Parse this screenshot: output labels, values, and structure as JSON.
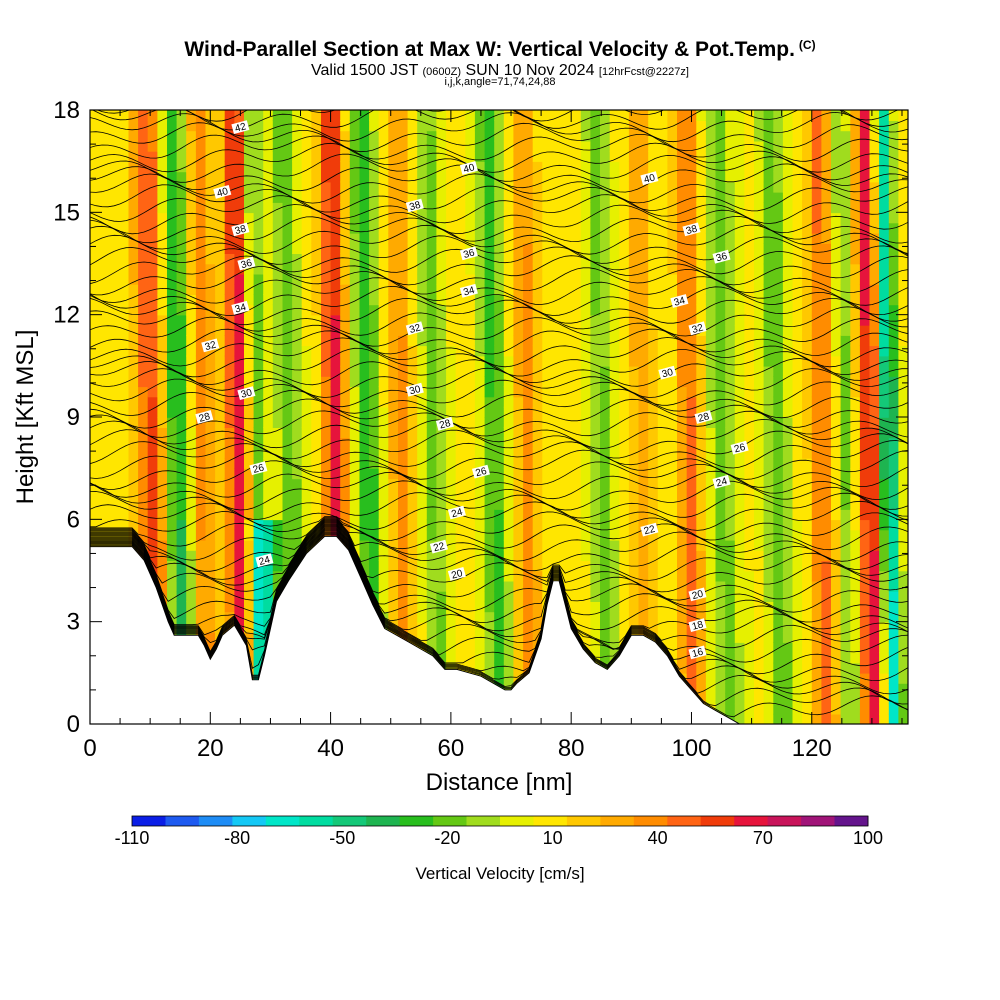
{
  "header": {
    "title": "Wind-Parallel Section at Max W: Vertical Velocity & Pot.Temp.",
    "copyright": "(C)",
    "valid_a": "Valid 1500 JST",
    "valid_b": "(0600Z)",
    "valid_c": "SUN 10 Nov 2024",
    "valid_d": "[12hrFcst@2227z]",
    "indices": "i,j,k,angle=71,74,24,88"
  },
  "chart_data": {
    "type": "heatmap",
    "xlabel": "Distance [nm]",
    "ylabel": "Height [Kft MSL]",
    "xlim": [
      0,
      136
    ],
    "ylim": [
      0,
      18
    ],
    "x_ticks": [
      0,
      20,
      40,
      60,
      80,
      100,
      120
    ],
    "y_ticks": [
      0,
      3,
      6,
      9,
      12,
      15,
      18
    ],
    "field": "Vertical Velocity [cm/s]",
    "contour_field": "Potential temperature",
    "colorbar": {
      "label": "Vertical Velocity [cm/s]",
      "tick_labels": [
        -110,
        -80,
        -50,
        -20,
        10,
        40,
        70,
        100
      ],
      "bins": [
        -110,
        -100,
        -90,
        -80,
        -70,
        -60,
        -50,
        -40,
        -30,
        -20,
        -10,
        0,
        10,
        20,
        30,
        40,
        50,
        60,
        70,
        80,
        90,
        100
      ],
      "colors": [
        "#0a1ee6",
        "#1e5af0",
        "#1e8cf5",
        "#14c8f5",
        "#00e6c8",
        "#00dca0",
        "#14c878",
        "#1eb450",
        "#28be1e",
        "#64c814",
        "#a0dc1e",
        "#e6f000",
        "#ffe600",
        "#ffc800",
        "#ffaa00",
        "#ff8c00",
        "#ff6414",
        "#f03c0a",
        "#e6143c",
        "#c8145a",
        "#a01478",
        "#64148c"
      ]
    },
    "terrain": [
      [
        0,
        5.2
      ],
      [
        3,
        5.2
      ],
      [
        7,
        5.2
      ],
      [
        9,
        4.8
      ],
      [
        11,
        4.0
      ],
      [
        12,
        3.5
      ],
      [
        13,
        3.0
      ],
      [
        14,
        2.6
      ],
      [
        16,
        2.6
      ],
      [
        18,
        2.6
      ],
      [
        19,
        2.3
      ],
      [
        20,
        1.9
      ],
      [
        21,
        2.2
      ],
      [
        22,
        2.6
      ],
      [
        24,
        2.9
      ],
      [
        25,
        2.6
      ],
      [
        26,
        2.3
      ],
      [
        27,
        1.3
      ],
      [
        28,
        1.3
      ],
      [
        29,
        2.0
      ],
      [
        31,
        3.6
      ],
      [
        33,
        4.2
      ],
      [
        36,
        5.0
      ],
      [
        39,
        5.5
      ],
      [
        41,
        5.5
      ],
      [
        43,
        5.1
      ],
      [
        45,
        4.3
      ],
      [
        47,
        3.5
      ],
      [
        49,
        2.8
      ],
      [
        51,
        2.6
      ],
      [
        53,
        2.4
      ],
      [
        55,
        2.2
      ],
      [
        57,
        2.0
      ],
      [
        59,
        1.6
      ],
      [
        61,
        1.6
      ],
      [
        63,
        1.5
      ],
      [
        65,
        1.4
      ],
      [
        67,
        1.2
      ],
      [
        69,
        1.0
      ],
      [
        70,
        1.0
      ],
      [
        71,
        1.2
      ],
      [
        73,
        1.5
      ],
      [
        75,
        2.5
      ],
      [
        76,
        3.5
      ],
      [
        77,
        4.2
      ],
      [
        78,
        4.2
      ],
      [
        79,
        3.5
      ],
      [
        80,
        2.8
      ],
      [
        82,
        2.2
      ],
      [
        84,
        1.8
      ],
      [
        86,
        1.6
      ],
      [
        88,
        2.0
      ],
      [
        90,
        2.6
      ],
      [
        92,
        2.6
      ],
      [
        94,
        2.4
      ],
      [
        96,
        2.0
      ],
      [
        98,
        1.4
      ],
      [
        100,
        1.0
      ],
      [
        102,
        0.6
      ],
      [
        104,
        0.4
      ],
      [
        106,
        0.2
      ],
      [
        108,
        0.0
      ],
      [
        110,
        0.0
      ],
      [
        112,
        0.0
      ],
      [
        136,
        0.0
      ]
    ],
    "contour_labels": [
      {
        "x": 25.0,
        "y": 17.5,
        "text": "42"
      },
      {
        "x": 22.0,
        "y": 15.6,
        "text": "40"
      },
      {
        "x": 25.0,
        "y": 14.5,
        "text": "38"
      },
      {
        "x": 26.0,
        "y": 13.5,
        "text": "36"
      },
      {
        "x": 25.0,
        "y": 12.2,
        "text": "34"
      },
      {
        "x": 20.0,
        "y": 11.1,
        "text": "32"
      },
      {
        "x": 26.0,
        "y": 9.7,
        "text": "30"
      },
      {
        "x": 19.0,
        "y": 9.0,
        "text": "28"
      },
      {
        "x": 28.0,
        "y": 7.5,
        "text": "26"
      },
      {
        "x": 29.0,
        "y": 4.8,
        "text": "24"
      },
      {
        "x": 54.0,
        "y": 15.2,
        "text": "38"
      },
      {
        "x": 63.0,
        "y": 16.3,
        "text": "40"
      },
      {
        "x": 63.0,
        "y": 13.8,
        "text": "36"
      },
      {
        "x": 63.0,
        "y": 12.7,
        "text": "34"
      },
      {
        "x": 54.0,
        "y": 11.6,
        "text": "32"
      },
      {
        "x": 54.0,
        "y": 9.8,
        "text": "30"
      },
      {
        "x": 59.0,
        "y": 8.8,
        "text": "28"
      },
      {
        "x": 65.0,
        "y": 7.4,
        "text": "26"
      },
      {
        "x": 61.0,
        "y": 6.2,
        "text": "24"
      },
      {
        "x": 58.0,
        "y": 5.2,
        "text": "22"
      },
      {
        "x": 61.0,
        "y": 4.4,
        "text": "20"
      },
      {
        "x": 93.0,
        "y": 16.0,
        "text": "40"
      },
      {
        "x": 100.0,
        "y": 14.5,
        "text": "38"
      },
      {
        "x": 105.0,
        "y": 13.7,
        "text": "36"
      },
      {
        "x": 98.0,
        "y": 12.4,
        "text": "34"
      },
      {
        "x": 101.0,
        "y": 11.6,
        "text": "32"
      },
      {
        "x": 96.0,
        "y": 10.3,
        "text": "30"
      },
      {
        "x": 102.0,
        "y": 9.0,
        "text": "28"
      },
      {
        "x": 108.0,
        "y": 8.1,
        "text": "26"
      },
      {
        "x": 105.0,
        "y": 7.1,
        "text": "24"
      },
      {
        "x": 93.0,
        "y": 5.7,
        "text": "22"
      },
      {
        "x": 101.0,
        "y": 3.8,
        "text": "20"
      },
      {
        "x": 101.0,
        "y": 2.9,
        "text": "18"
      },
      {
        "x": 101.0,
        "y": 2.1,
        "text": "16"
      }
    ]
  }
}
